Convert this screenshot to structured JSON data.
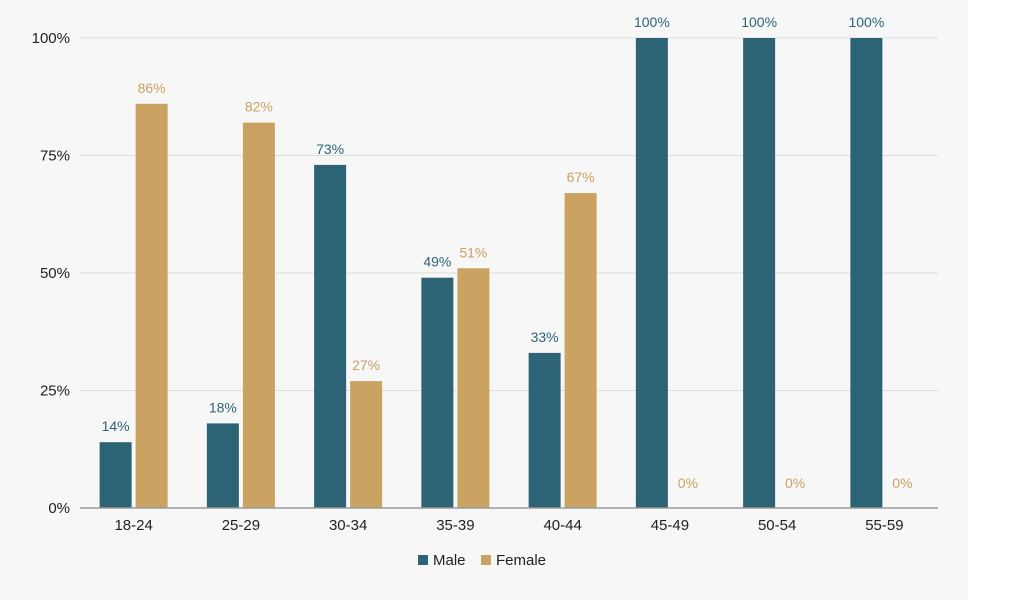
{
  "chart_data": {
    "type": "bar",
    "title": "",
    "xlabel": "",
    "ylabel": "",
    "ylim": [
      0,
      100
    ],
    "yticks": [
      "0%",
      "25%",
      "50%",
      "75%",
      "100%"
    ],
    "ytick_values": [
      0,
      25,
      50,
      75,
      100
    ],
    "categories": [
      "18-24",
      "25-29",
      "30-34",
      "35-39",
      "40-44",
      "45-49",
      "50-54",
      "55-59"
    ],
    "series": [
      {
        "name": "Male",
        "color": "#2c6475",
        "values": [
          14,
          18,
          73,
          49,
          33,
          100,
          100,
          100
        ],
        "labels": [
          "14%",
          "18%",
          "73%",
          "49%",
          "33%",
          "100%",
          "100%",
          "100%"
        ]
      },
      {
        "name": "Female",
        "color": "#caa262",
        "values": [
          86,
          82,
          27,
          51,
          67,
          0,
          0,
          0
        ],
        "labels": [
          "86%",
          "82%",
          "27%",
          "51%",
          "67%",
          "0%",
          "0%",
          "0%"
        ]
      }
    ],
    "grid": true,
    "legend": "bottom-center"
  }
}
